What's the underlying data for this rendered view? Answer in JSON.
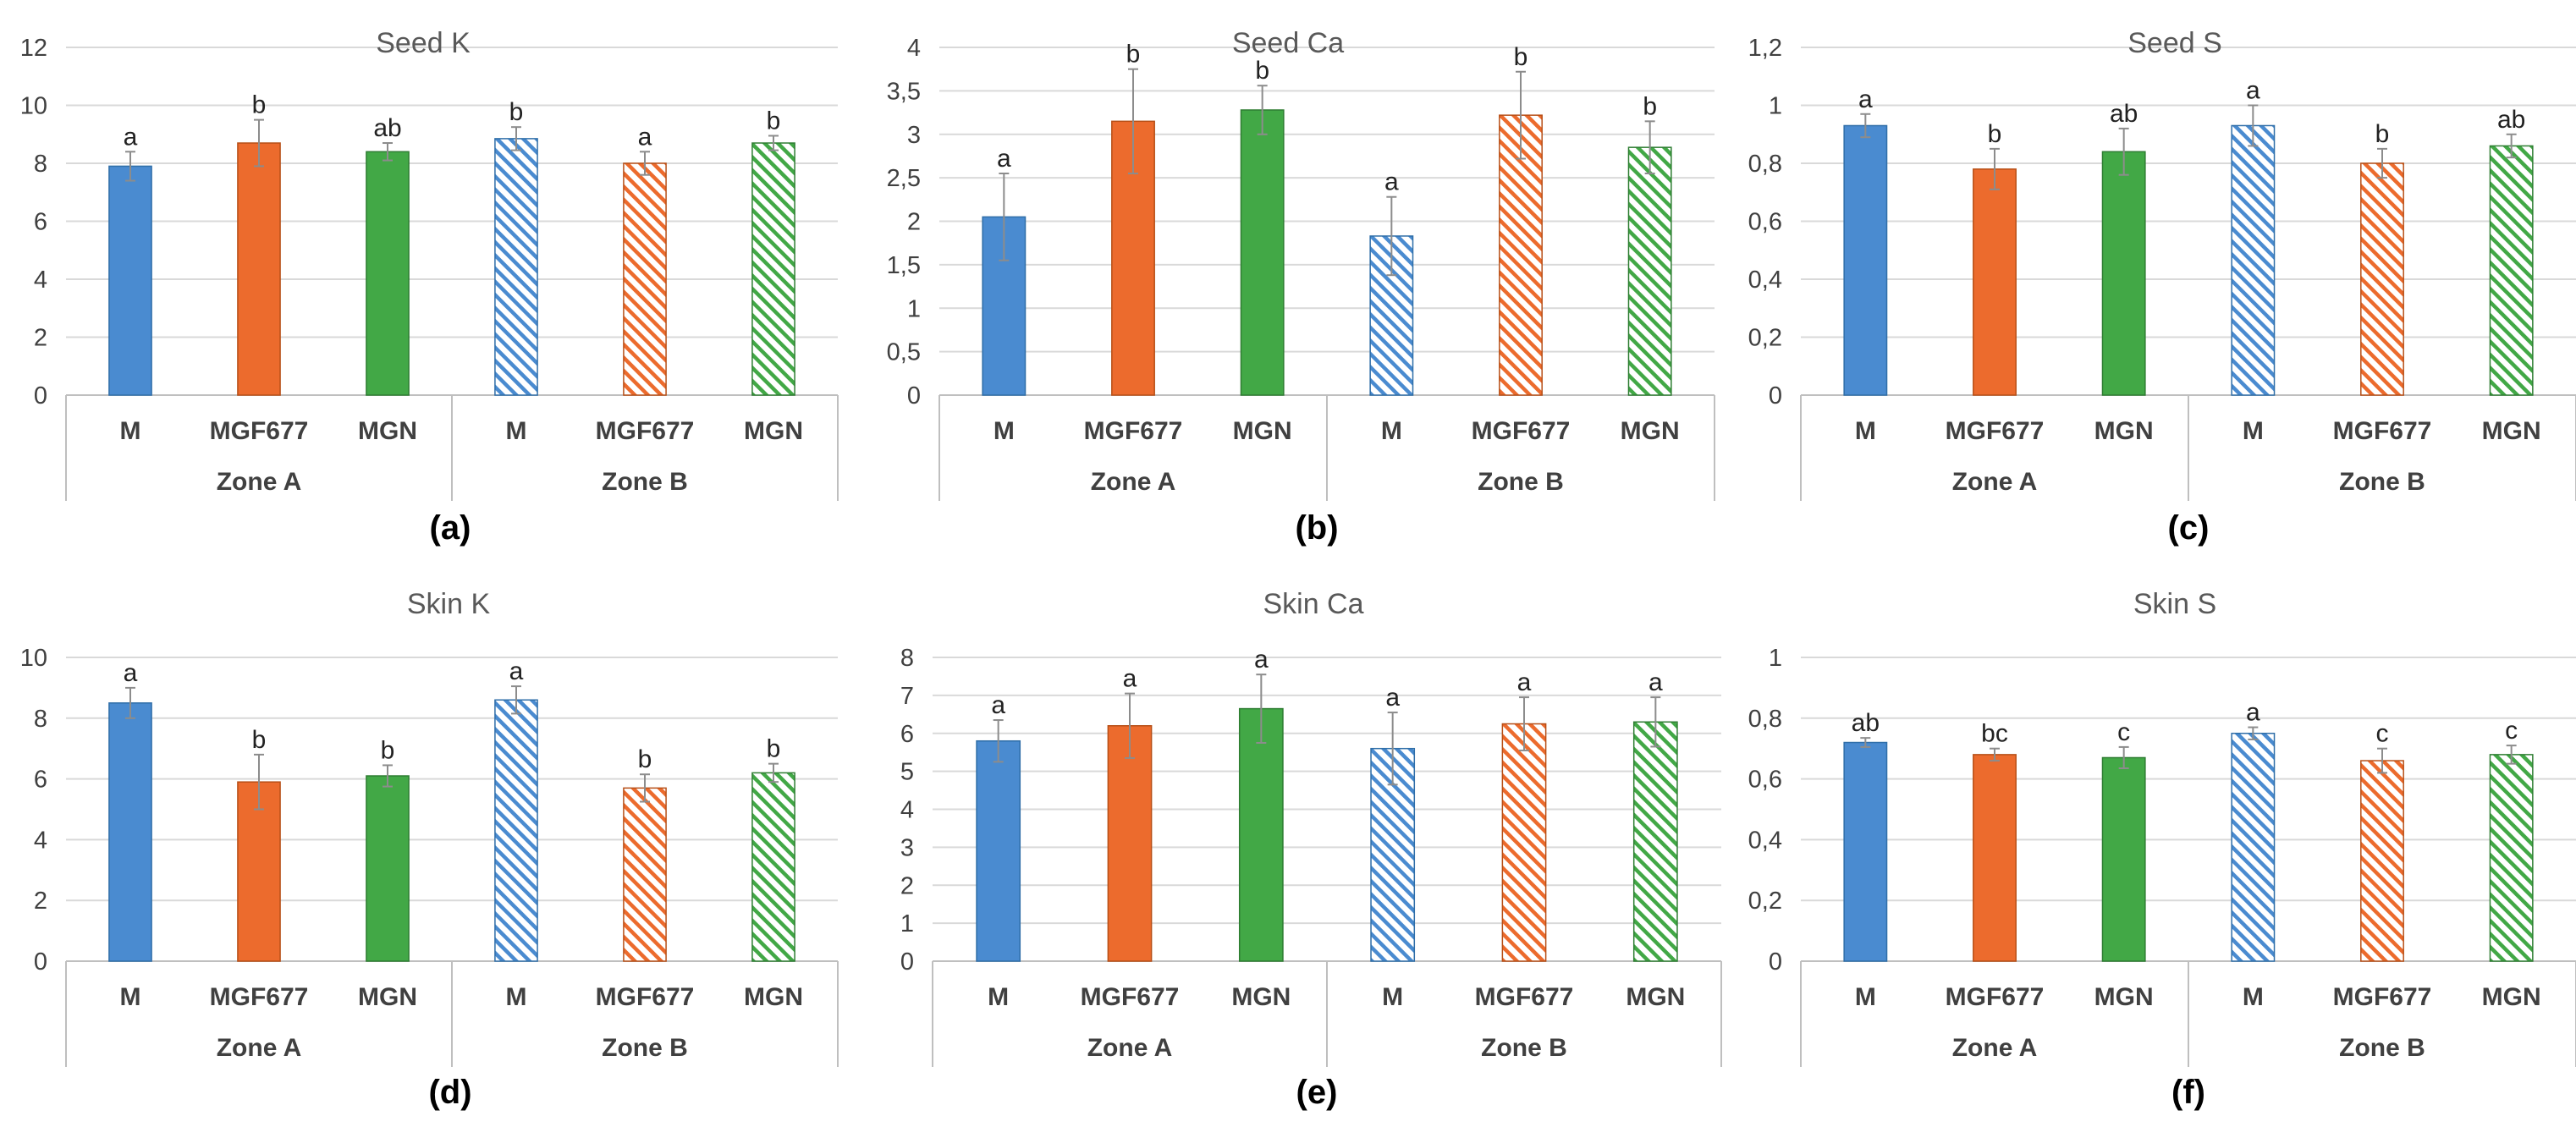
{
  "colors": {
    "M": "#4a8bd0",
    "MGF677": "#ec6b2d",
    "MGN": "#42a846",
    "M_border": "#2f6ea8",
    "MGF677_border": "#b74f17",
    "MGN_border": "#2e7d32",
    "grid": "#d9d9d9",
    "axis": "#bfbfbf",
    "error_bar": "#8c8c8c"
  },
  "chart_data": [
    {
      "type": "bar",
      "panel": "(a)",
      "title": "Seed K",
      "categories": [
        "M",
        "MGF677",
        "MGN",
        "M",
        "MGF677",
        "MGN"
      ],
      "groups": [
        "Zone A",
        "Zone B"
      ],
      "hatched": [
        false,
        false,
        false,
        true,
        true,
        true
      ],
      "values": [
        7.9,
        8.7,
        8.4,
        8.85,
        8.0,
        8.7
      ],
      "errors": [
        0.5,
        0.8,
        0.3,
        0.4,
        0.4,
        0.25
      ],
      "significance": [
        "a",
        "b",
        "ab",
        "b",
        "a",
        "b"
      ],
      "ylim": [
        0,
        12
      ],
      "ytick_values": [
        0,
        2,
        4,
        6,
        8,
        10,
        12
      ],
      "ytick_labels": [
        "0",
        "2",
        "4",
        "6",
        "8",
        "10",
        "12"
      ]
    },
    {
      "type": "bar",
      "panel": "(b)",
      "title": "Seed Ca",
      "categories": [
        "M",
        "MGF677",
        "MGN",
        "M",
        "MGF677",
        "MGN"
      ],
      "groups": [
        "Zone A",
        "Zone B"
      ],
      "hatched": [
        false,
        false,
        false,
        true,
        true,
        true
      ],
      "values": [
        2.05,
        3.15,
        3.28,
        1.83,
        3.22,
        2.85
      ],
      "errors": [
        0.5,
        0.6,
        0.28,
        0.45,
        0.5,
        0.3
      ],
      "significance": [
        "a",
        "b",
        "b",
        "a",
        "b",
        "b"
      ],
      "ylim": [
        0,
        4
      ],
      "ytick_values": [
        0,
        0.5,
        1,
        1.5,
        2,
        2.5,
        3,
        3.5,
        4
      ],
      "ytick_labels": [
        "0",
        "0,5",
        "1",
        "1,5",
        "2",
        "2,5",
        "3",
        "3,5",
        "4"
      ]
    },
    {
      "type": "bar",
      "panel": "(c)",
      "title": "Seed S",
      "categories": [
        "M",
        "MGF677",
        "MGN",
        "M",
        "MGF677",
        "MGN"
      ],
      "groups": [
        "Zone A",
        "Zone B"
      ],
      "hatched": [
        false,
        false,
        false,
        true,
        true,
        true
      ],
      "values": [
        0.93,
        0.78,
        0.84,
        0.93,
        0.8,
        0.86
      ],
      "errors": [
        0.04,
        0.07,
        0.08,
        0.07,
        0.05,
        0.04
      ],
      "significance": [
        "a",
        "b",
        "ab",
        "a",
        "b",
        "ab"
      ],
      "ylim": [
        0,
        1.2
      ],
      "ytick_values": [
        0,
        0.2,
        0.4,
        0.6,
        0.8,
        1,
        1.2
      ],
      "ytick_labels": [
        "0",
        "0,2",
        "0,4",
        "0,6",
        "0,8",
        "1",
        "1,2"
      ]
    },
    {
      "type": "bar",
      "panel": "(d)",
      "title": "Skin K",
      "categories": [
        "M",
        "MGF677",
        "MGN",
        "M",
        "MGF677",
        "MGN"
      ],
      "groups": [
        "Zone A",
        "Zone B"
      ],
      "hatched": [
        false,
        false,
        false,
        true,
        true,
        true
      ],
      "values": [
        8.5,
        5.9,
        6.1,
        8.6,
        5.7,
        6.2
      ],
      "errors": [
        0.5,
        0.9,
        0.35,
        0.45,
        0.45,
        0.3
      ],
      "significance": [
        "a",
        "b",
        "b",
        "a",
        "b",
        "b"
      ],
      "ylim": [
        0,
        10
      ],
      "ytick_values": [
        0,
        2,
        4,
        6,
        8,
        10
      ],
      "ytick_labels": [
        "0",
        "2",
        "4",
        "6",
        "8",
        "10"
      ]
    },
    {
      "type": "bar",
      "panel": "(e)",
      "title": "Skin Ca",
      "categories": [
        "M",
        "MGF677",
        "MGN",
        "M",
        "MGF677",
        "MGN"
      ],
      "groups": [
        "Zone A",
        "Zone B"
      ],
      "hatched": [
        false,
        false,
        false,
        true,
        true,
        true
      ],
      "values": [
        5.8,
        6.2,
        6.65,
        5.6,
        6.25,
        6.3
      ],
      "errors": [
        0.55,
        0.85,
        0.9,
        0.95,
        0.7,
        0.65
      ],
      "significance": [
        "a",
        "a",
        "a",
        "a",
        "a",
        "a"
      ],
      "ylim": [
        0,
        8
      ],
      "ytick_values": [
        0,
        1,
        2,
        3,
        4,
        5,
        6,
        7,
        8
      ],
      "ytick_labels": [
        "0",
        "1",
        "2",
        "3",
        "4",
        "5",
        "6",
        "7",
        "8"
      ]
    },
    {
      "type": "bar",
      "panel": "(f)",
      "title": "Skin S",
      "categories": [
        "M",
        "MGF677",
        "MGN",
        "M",
        "MGF677",
        "MGN"
      ],
      "groups": [
        "Zone A",
        "Zone B"
      ],
      "hatched": [
        false,
        false,
        false,
        true,
        true,
        true
      ],
      "values": [
        0.72,
        0.68,
        0.67,
        0.75,
        0.66,
        0.68
      ],
      "errors": [
        0.015,
        0.02,
        0.035,
        0.02,
        0.04,
        0.03
      ],
      "significance": [
        "ab",
        "bc",
        "c",
        "a",
        "c",
        "c"
      ],
      "ylim": [
        0,
        1
      ],
      "ytick_values": [
        0,
        0.2,
        0.4,
        0.6,
        0.8,
        1
      ],
      "ytick_labels": [
        "0",
        "0,2",
        "0,4",
        "0,6",
        "0,8",
        "1"
      ]
    }
  ]
}
